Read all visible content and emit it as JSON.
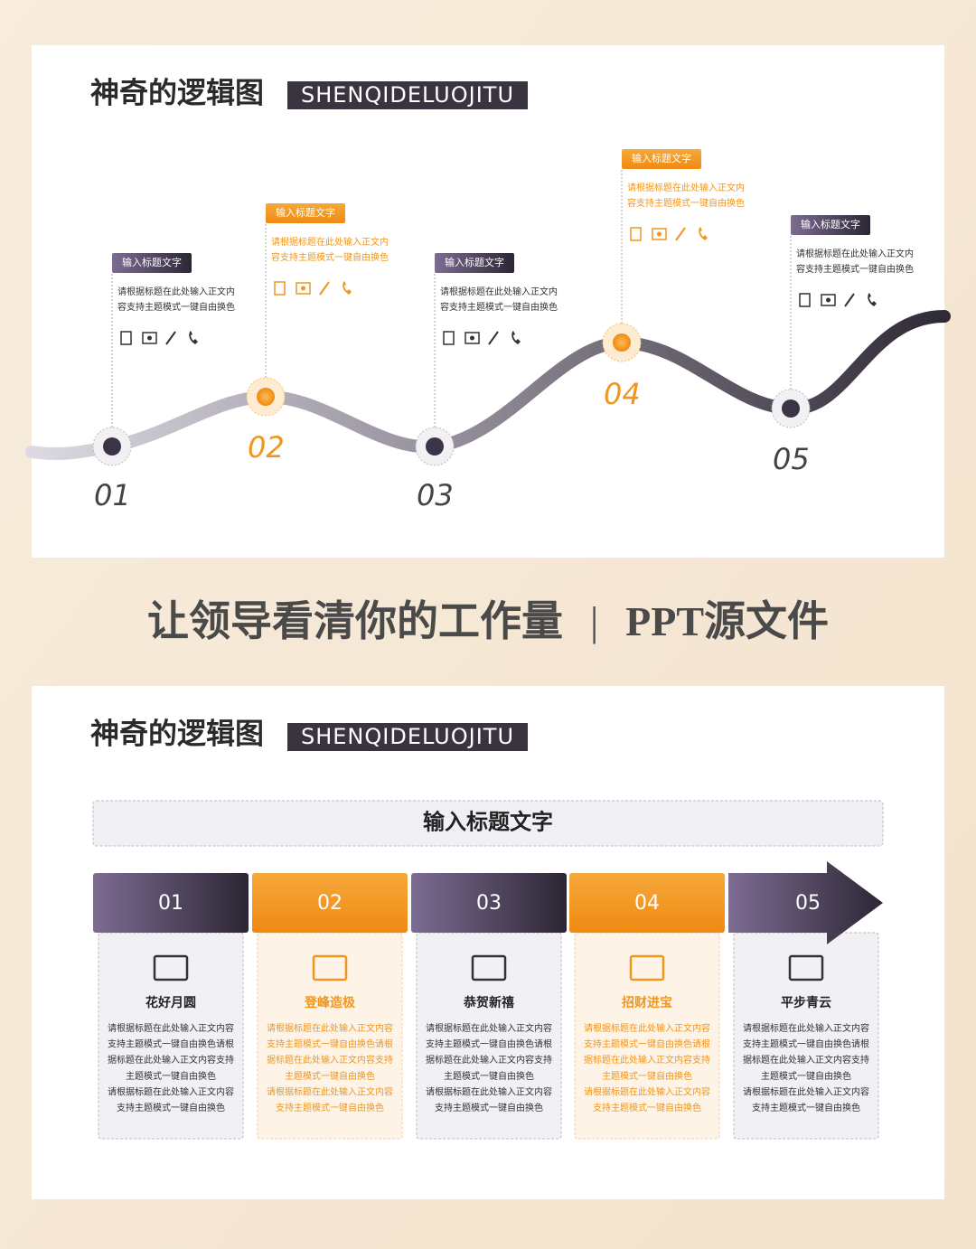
{
  "slide1": {
    "title": "神奇的逻辑图",
    "subtitle": "SHENQIDELUOJITU",
    "nodes": [
      {
        "number": "01",
        "label": "输入标题文字",
        "lines": [
          "请根据标题在此处输入正文内",
          "容支持主题模式一键自由换色"
        ]
      },
      {
        "number": "02",
        "label": "输入标题文字",
        "lines": [
          "请根据标题在此处输入正文内",
          "容支持主题模式一键自由换色"
        ]
      },
      {
        "number": "03",
        "label": "输入标题文字",
        "lines": [
          "请根据标题在此处输入正文内",
          "容支持主题模式一键自由换色"
        ]
      },
      {
        "number": "04",
        "label": "输入标题文字",
        "lines": [
          "请根据标题在此处输入正文内",
          "容支持主题模式一键自由换色"
        ]
      },
      {
        "number": "05",
        "label": "输入标题文字",
        "lines": [
          "请根据标题在此处输入正文内",
          "容支持主题模式一键自由换色"
        ]
      }
    ]
  },
  "banner": {
    "main": "让领导看清你的工作量",
    "separator": "|",
    "source": "PPT源文件"
  },
  "slide2": {
    "title": "神奇的逻辑图",
    "subtitle": "SHENQIDELUOJITU",
    "header": "输入标题文字",
    "columns": [
      {
        "number": "01",
        "name": "花好月圆",
        "lines": [
          "请根据标题在此处输入正文内容",
          "支持主题模式一键自由换色请根",
          "据标题在此处输入正文内容支持",
          "主题模式一键自由换色",
          "请根据标题在此处输入正文内容",
          "支持主题模式一键自由换色"
        ]
      },
      {
        "number": "02",
        "name": "登峰造极",
        "lines": [
          "请根据标题在此处输入正文内容",
          "支持主题模式一键自由换色请根",
          "据标题在此处输入正文内容支持",
          "主题模式一键自由换色",
          "请根据标题在此处输入正文内容",
          "支持主题模式一键自由换色"
        ]
      },
      {
        "number": "03",
        "name": "恭贺新禧",
        "lines": [
          "请根据标题在此处输入正文内容",
          "支持主题模式一键自由换色请根",
          "据标题在此处输入正文内容支持",
          "主题模式一键自由换色",
          "请根据标题在此处输入正文内容",
          "支持主题模式一键自由换色"
        ]
      },
      {
        "number": "04",
        "name": "招财进宝",
        "lines": [
          "请根据标题在此处输入正文内容",
          "支持主题模式一键自由换色请根",
          "据标题在此处输入正文内容支持",
          "主题模式一键自由换色",
          "请根据标题在此处输入正文内容",
          "支持主题模式一键自由换色"
        ]
      },
      {
        "number": "05",
        "name": "平步青云",
        "lines": [
          "请根据标题在此处输入正文内容",
          "支持主题模式一键自由换色请根",
          "据标题在此处输入正文内容支持",
          "主题模式一键自由换色",
          "请根据标题在此处输入正文内容",
          "支持主题模式一键自由换色"
        ]
      }
    ]
  }
}
